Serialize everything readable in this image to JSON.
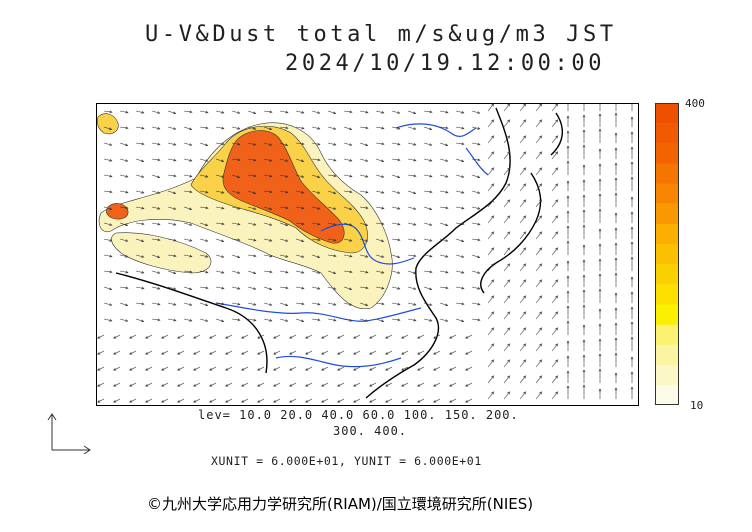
{
  "header": {
    "title_line1": "U-V&Dust total m/s&ug/m3 JST",
    "title_line2": "2024/10/19.12:00:00"
  },
  "color_scale": {
    "max_label": "400",
    "min_label": "10",
    "colors": [
      "#fbfbe8",
      "#fbf7c6",
      "#fbf5a2",
      "#fbf271",
      "#fbf000",
      "#fbe000",
      "#fbd000",
      "#fbc000",
      "#fbb000",
      "#fa9800",
      "#f98600",
      "#f67400",
      "#f36400",
      "#f05a00",
      "#ee5000"
    ]
  },
  "legend": {
    "levels_line1": "lev= 10.0 20.0 40.0 60.0 100. 150. 200.",
    "levels_line2": "300. 400.",
    "unit_line": "XUNIT = 6.000E+01, YUNIT = 6.000E+01"
  },
  "footer": {
    "copyright": "©九州大学応用力学研究所(RIAM)/国立環境研究所(NIES)"
  },
  "map_colors": {
    "land_border": "#000000",
    "rivers": "#1e4fd8",
    "dust_low": "#fbf5c0",
    "dust_mid": "#f9d24a",
    "dust_high": "#f0621a"
  }
}
